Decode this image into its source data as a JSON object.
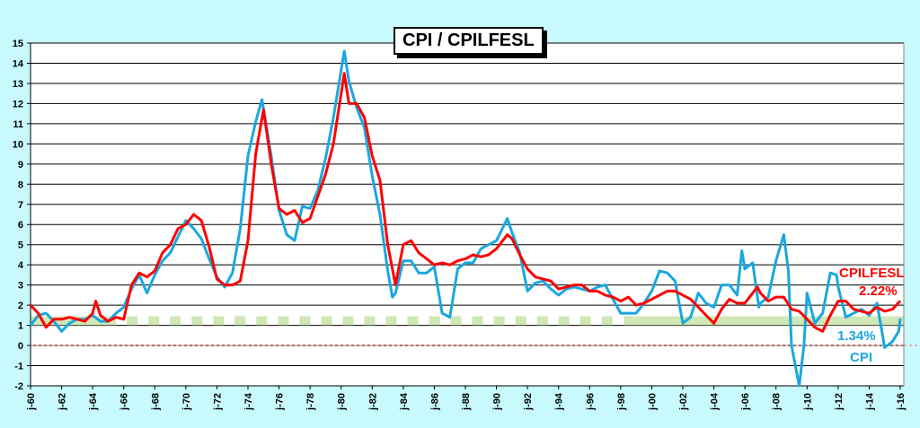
{
  "chart_data": {
    "type": "line",
    "title": "CPI / CPILFESL",
    "xlabel": "",
    "ylabel": "",
    "ylim": [
      -2,
      15
    ],
    "xlim": [
      1960,
      2016
    ],
    "yticks": [
      -2,
      -1,
      0,
      1,
      2,
      3,
      4,
      5,
      6,
      7,
      8,
      9,
      10,
      11,
      12,
      13,
      14,
      15
    ],
    "xtick_labels": [
      "j-60",
      "j-62",
      "j-64",
      "j-66",
      "j-68",
      "j-70",
      "j-72",
      "j-74",
      "j-76",
      "j-78",
      "j-80",
      "j-82",
      "j-84",
      "j-86",
      "j-88",
      "j-90",
      "j-92",
      "j-94",
      "j-96",
      "j-98",
      "j-00",
      "j-02",
      "j-04",
      "j-06",
      "j-08",
      "j-10",
      "j-12",
      "j-14",
      "j-16"
    ],
    "grid": true,
    "target_band": [
      1,
      1.45
    ],
    "zero_line": 0,
    "series": [
      {
        "name": "CPI",
        "color": "#1aa7e0",
        "last_label": "1.34%",
        "x": [
          1960,
          1960.5,
          1961,
          1961.5,
          1962,
          1962.5,
          1963,
          1963.5,
          1964,
          1964.5,
          1965,
          1965.5,
          1966,
          1966.5,
          1967,
          1967.5,
          1968,
          1968.5,
          1969,
          1969.5,
          1970,
          1970.5,
          1971,
          1971.5,
          1972,
          1972.5,
          1973,
          1973.5,
          1974,
          1974.5,
          1974.9,
          1975.5,
          1976,
          1976.5,
          1977,
          1977.5,
          1978,
          1978.5,
          1979,
          1979.5,
          1980.2,
          1980.5,
          1981,
          1981.5,
          1982,
          1982.5,
          1983,
          1983.3,
          1983.5,
          1984,
          1984.5,
          1985,
          1985.5,
          1986,
          1986.5,
          1987,
          1987.5,
          1988,
          1988.5,
          1989,
          1989.5,
          1990,
          1990.7,
          1991,
          1991.5,
          1992,
          1992.5,
          1993,
          1993.5,
          1994,
          1994.5,
          1995,
          1995.5,
          1996,
          1996.5,
          1997,
          1997.5,
          1998,
          1998.5,
          1999,
          1999.5,
          2000,
          2000.5,
          2001,
          2001.5,
          2002,
          2002.5,
          2003,
          2003.5,
          2004,
          2004.5,
          2005,
          2005.5,
          2005.8,
          2006,
          2006.5,
          2006.9,
          2007,
          2007.5,
          2008,
          2008.5,
          2008.8,
          2009,
          2009.5,
          2009.8,
          2010,
          2010.5,
          2011,
          2011.5,
          2011.9,
          2012,
          2012.5,
          2013,
          2013.5,
          2014,
          2014.5,
          2015,
          2015.5,
          2015.9,
          2016
        ],
        "values": [
          1.0,
          1.5,
          1.6,
          1.2,
          0.7,
          1.1,
          1.3,
          1.3,
          1.5,
          1.2,
          1.2,
          1.6,
          1.9,
          2.8,
          3.5,
          2.6,
          3.5,
          4.2,
          4.6,
          5.4,
          6.2,
          5.8,
          5.3,
          4.3,
          3.4,
          2.9,
          3.6,
          5.8,
          9.4,
          11.1,
          12.2,
          9.4,
          6.7,
          5.5,
          5.2,
          6.9,
          6.8,
          7.7,
          9.3,
          11.3,
          14.6,
          13.1,
          11.8,
          10.8,
          8.4,
          6.5,
          3.7,
          2.4,
          2.6,
          4.2,
          4.2,
          3.6,
          3.6,
          3.9,
          1.6,
          1.4,
          3.8,
          4.1,
          4.1,
          4.8,
          5.0,
          5.2,
          6.3,
          5.6,
          4.6,
          2.7,
          3.1,
          3.2,
          2.8,
          2.5,
          2.8,
          2.9,
          2.8,
          2.7,
          2.9,
          3.0,
          2.3,
          1.6,
          1.6,
          1.6,
          2.1,
          2.7,
          3.7,
          3.6,
          3.2,
          1.1,
          1.4,
          2.6,
          2.1,
          1.9,
          3.0,
          3.0,
          2.5,
          4.7,
          3.8,
          4.1,
          1.9,
          2.1,
          2.4,
          4.2,
          5.5,
          3.7,
          0.0,
          -2.0,
          0.0,
          2.6,
          1.1,
          1.6,
          3.6,
          3.5,
          2.9,
          1.4,
          1.6,
          1.8,
          1.5,
          2.1,
          -0.1,
          0.2,
          0.7,
          1.34
        ]
      },
      {
        "name": "CPILFESL",
        "color": "#ff0000",
        "last_label": "2.22%",
        "x": [
          1960,
          1960.5,
          1961,
          1961.5,
          1962,
          1962.5,
          1963,
          1963.5,
          1964,
          1964.2,
          1964.5,
          1965,
          1965.5,
          1966,
          1966.5,
          1967,
          1967.5,
          1968,
          1968.5,
          1969,
          1969.5,
          1970,
          1970.5,
          1971,
          1971.5,
          1972,
          1972.5,
          1973,
          1973.5,
          1974,
          1974.5,
          1975,
          1975.5,
          1976,
          1976.5,
          1977,
          1977.5,
          1978,
          1978.5,
          1979,
          1979.5,
          1980.2,
          1980.5,
          1981,
          1981.5,
          1982,
          1982.5,
          1983,
          1983.5,
          1984,
          1984.5,
          1985,
          1985.5,
          1986,
          1986.5,
          1987,
          1987.5,
          1988,
          1988.5,
          1989,
          1989.5,
          1990,
          1990.7,
          1991,
          1991.5,
          1992,
          1992.5,
          1993,
          1993.5,
          1994,
          1994.5,
          1995,
          1995.5,
          1996,
          1996.5,
          1997,
          1997.5,
          1998,
          1998.5,
          1999,
          1999.5,
          2000,
          2000.5,
          2001,
          2001.5,
          2002,
          2002.5,
          2003,
          2003.5,
          2004,
          2004.5,
          2005,
          2005.5,
          2006,
          2006.5,
          2006.8,
          2007,
          2007.5,
          2008,
          2008.5,
          2009,
          2009.5,
          2010,
          2010.5,
          2011,
          2011.5,
          2012,
          2012.5,
          2013,
          2013.5,
          2014,
          2014.5,
          2015,
          2015.5,
          2016
        ],
        "values": [
          2.0,
          1.6,
          0.9,
          1.3,
          1.3,
          1.4,
          1.3,
          1.2,
          1.6,
          2.2,
          1.5,
          1.2,
          1.4,
          1.3,
          3.0,
          3.6,
          3.4,
          3.7,
          4.6,
          5.0,
          5.8,
          6.0,
          6.5,
          6.2,
          4.9,
          3.3,
          3.0,
          3.0,
          3.2,
          5.2,
          9.5,
          11.7,
          9.0,
          6.8,
          6.5,
          6.7,
          6.1,
          6.3,
          7.4,
          8.5,
          10.0,
          13.5,
          12.0,
          12.0,
          11.3,
          9.4,
          8.2,
          5.0,
          3.0,
          5.0,
          5.2,
          4.6,
          4.3,
          4.0,
          4.1,
          4.0,
          4.2,
          4.3,
          4.5,
          4.4,
          4.5,
          4.8,
          5.5,
          5.3,
          4.5,
          3.8,
          3.4,
          3.3,
          3.2,
          2.8,
          2.9,
          3.0,
          3.0,
          2.7,
          2.7,
          2.5,
          2.4,
          2.2,
          2.4,
          2.0,
          2.1,
          2.3,
          2.5,
          2.7,
          2.7,
          2.5,
          2.3,
          1.9,
          1.5,
          1.1,
          1.8,
          2.3,
          2.1,
          2.1,
          2.6,
          2.9,
          2.6,
          2.2,
          2.4,
          2.4,
          1.8,
          1.7,
          1.3,
          0.9,
          0.7,
          1.5,
          2.2,
          2.2,
          1.8,
          1.7,
          1.6,
          1.9,
          1.7,
          1.8,
          2.22
        ]
      }
    ]
  }
}
